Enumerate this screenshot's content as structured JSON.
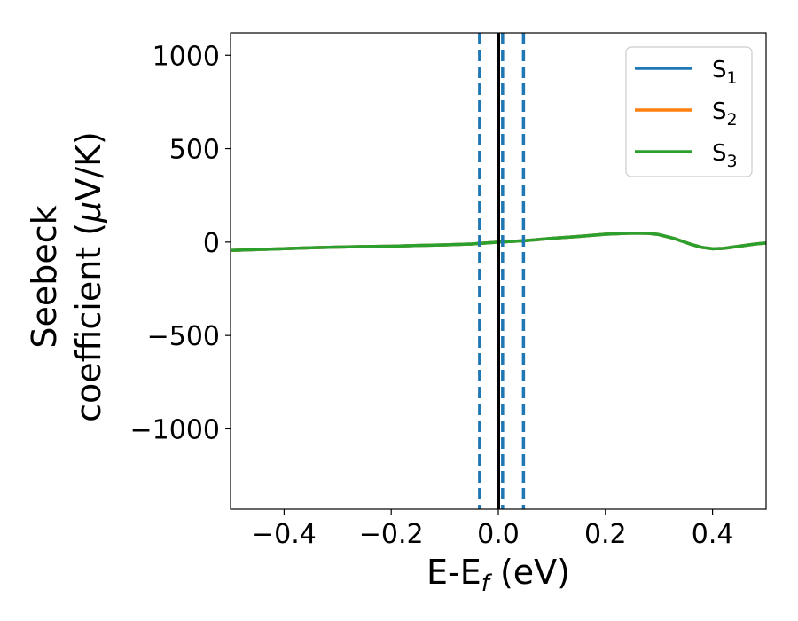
{
  "chart_data": {
    "type": "line",
    "title": "",
    "xlabel": "E-E",
    "xlabel_sub": "f",
    "xlabel_unit": " (eV)",
    "ylabel_line1": "Seebeck",
    "ylabel_line2": "coefficient  (",
    "ylabel_mu": "μ",
    "ylabel_unit": "V/K)",
    "xlim": [
      -0.5,
      0.5
    ],
    "ylim": [
      -1430,
      1120
    ],
    "xticks": [
      -0.4,
      -0.2,
      0.0,
      0.2,
      0.4
    ],
    "xtick_labels": [
      "−0.4",
      "−0.2",
      "0.0",
      "0.2",
      "0.4"
    ],
    "yticks": [
      1000,
      500,
      0,
      -500,
      -1000
    ],
    "ytick_labels": [
      "1000",
      "500",
      "0",
      "−500",
      "−1000"
    ],
    "grid": false,
    "legend_position": "top-right",
    "vertical_lines": [
      {
        "x": -0.035,
        "style": "dashed",
        "color": "#1f77b4"
      },
      {
        "x": 0.0,
        "style": "solid",
        "color": "#000000"
      },
      {
        "x": 0.008,
        "style": "dashed",
        "color": "#1f77b4"
      },
      {
        "x": 0.047,
        "style": "dashed",
        "color": "#1f77b4"
      }
    ],
    "x": [
      -0.5,
      -0.45,
      -0.4,
      -0.35,
      -0.3,
      -0.25,
      -0.2,
      -0.15,
      -0.1,
      -0.05,
      0.0,
      0.05,
      0.1,
      0.15,
      0.2,
      0.25,
      0.28,
      0.3,
      0.33,
      0.36,
      0.38,
      0.4,
      0.42,
      0.45,
      0.48,
      0.5
    ],
    "series": [
      {
        "name": "S",
        "sub": "1",
        "color": "#1f77b4",
        "values": [
          -45,
          -40,
          -35,
          -30,
          -27,
          -24,
          -22,
          -18,
          -15,
          -10,
          0,
          8,
          20,
          30,
          42,
          48,
          47,
          40,
          18,
          -12,
          -28,
          -36,
          -34,
          -22,
          -10,
          -5
        ]
      },
      {
        "name": "S",
        "sub": "2",
        "color": "#ff7f0e",
        "values": [
          -45,
          -40,
          -35,
          -30,
          -27,
          -24,
          -22,
          -18,
          -15,
          -10,
          0,
          8,
          20,
          30,
          42,
          48,
          47,
          40,
          18,
          -12,
          -28,
          -36,
          -34,
          -22,
          -10,
          -5
        ]
      },
      {
        "name": "S",
        "sub": "3",
        "color": "#2ca02c",
        "values": [
          -45,
          -40,
          -35,
          -30,
          -27,
          -24,
          -22,
          -18,
          -15,
          -10,
          0,
          8,
          20,
          30,
          42,
          48,
          47,
          40,
          18,
          -12,
          -28,
          -36,
          -34,
          -22,
          -10,
          -5
        ]
      }
    ]
  }
}
